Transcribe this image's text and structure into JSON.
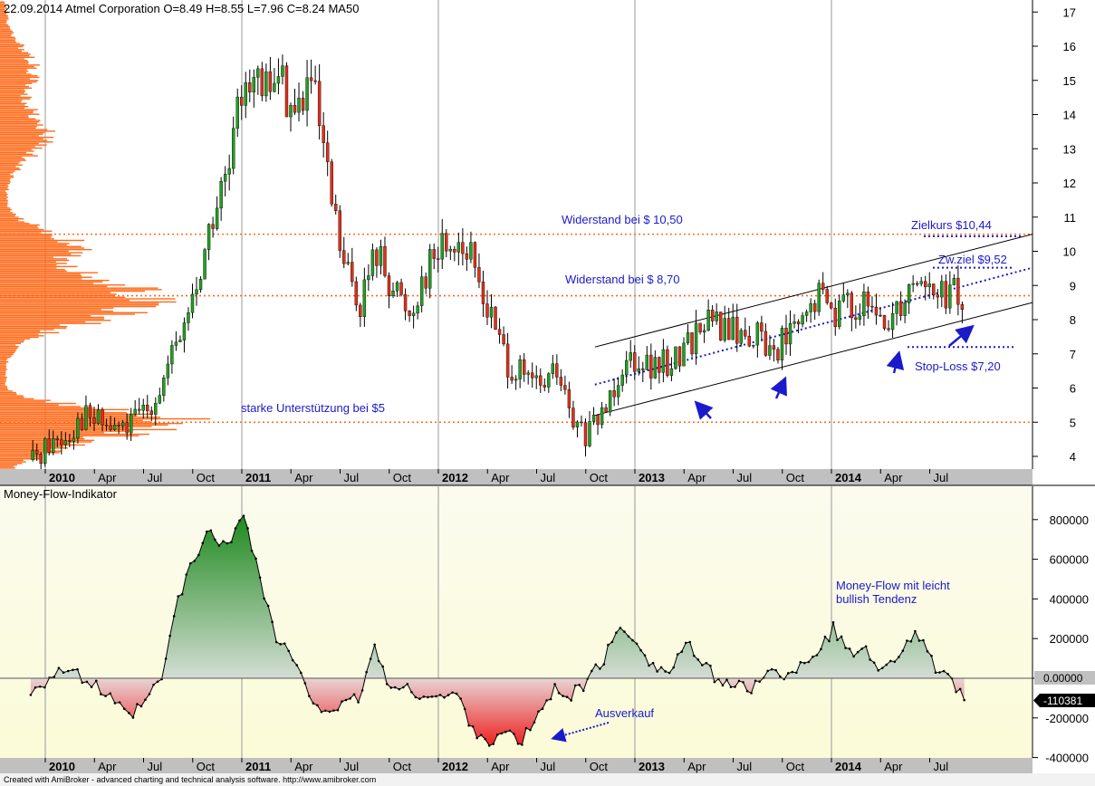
{
  "header": {
    "title": "22.09.2014 Atmel Corporation  O=8.49  H=8.55  L=7.96  C=8.24    MA50"
  },
  "colors": {
    "price_bg": "#ffffff",
    "indicator_bg_top": "#fbfbef",
    "indicator_bg_bottom": "#fbfbd8",
    "axis_band": "#c0c0c0",
    "candle_up": "#22a022",
    "candle_down": "#e0301a",
    "volume_profile": "#ff6a1a",
    "resistance_line": "#ff6a1a",
    "annotation_text": "#1a1acc",
    "mf_positive": "#2a8a2a",
    "mf_negative": "#e02020"
  },
  "x_axis": {
    "labels": [
      {
        "text": "2010",
        "bold": true
      },
      {
        "text": "Apr",
        "bold": false
      },
      {
        "text": "Jul",
        "bold": false
      },
      {
        "text": "Oct",
        "bold": false
      },
      {
        "text": "2011",
        "bold": true
      },
      {
        "text": "Apr",
        "bold": false
      },
      {
        "text": "Jul",
        "bold": false
      },
      {
        "text": "Oct",
        "bold": false
      },
      {
        "text": "2012",
        "bold": true
      },
      {
        "text": "Apr",
        "bold": false
      },
      {
        "text": "Jul",
        "bold": false
      },
      {
        "text": "Oct",
        "bold": false
      },
      {
        "text": "2013",
        "bold": true
      },
      {
        "text": "Apr",
        "bold": false
      },
      {
        "text": "Jul",
        "bold": false
      },
      {
        "text": "Oct",
        "bold": false
      },
      {
        "text": "2014",
        "bold": true
      },
      {
        "text": "Apr",
        "bold": false
      },
      {
        "text": "Jul",
        "bold": false
      }
    ]
  },
  "price_panel": {
    "y_ticks": [
      "4",
      "5",
      "6",
      "7",
      "8",
      "9",
      "10",
      "11",
      "12",
      "13",
      "14",
      "15",
      "16",
      "17"
    ],
    "annotations": {
      "resistance_1050": "Widerstand bei $ 10,50",
      "resistance_870": "Widerstand bei $ 8,70",
      "support_5": "starke Unterstützung bei $5",
      "target": "Zielkurs $10,44",
      "intermediate_target": "Zw.ziel $9,52",
      "stop_loss": "Stop-Loss $7,20"
    }
  },
  "indicator_panel": {
    "title": "Money-Flow-Indikator",
    "y_ticks": [
      "800000",
      "600000",
      "400000",
      "200000",
      "0",
      "-200000",
      "-400000"
    ],
    "zero_label": "0.00000",
    "last_value_label": "-110381",
    "annotations": {
      "trend": "Money-Flow mit leicht",
      "trend_line2": "bullish Tendenz",
      "selloff": "Ausverkauf"
    }
  },
  "footer": {
    "credit": "Created with AmiBroker - advanced charting and technical analysis software. http://www.amibroker.com"
  },
  "chart_data": [
    {
      "type": "candlestick",
      "title": "22.09.2014 Atmel Corporation  O=8.49  H=8.55  L=7.96  C=8.24    MA50",
      "ylim": [
        3.6,
        17.3
      ],
      "last_bar": {
        "open": 8.49,
        "high": 8.55,
        "low": 7.96,
        "close": 8.24
      },
      "x": [
        "2009-12",
        "2010-01",
        "2010-02",
        "2010-03",
        "2010-04",
        "2010-05",
        "2010-06",
        "2010-07",
        "2010-08",
        "2010-09",
        "2010-10",
        "2010-11",
        "2010-12",
        "2011-01",
        "2011-02",
        "2011-03",
        "2011-04",
        "2011-05",
        "2011-06",
        "2011-07",
        "2011-08",
        "2011-09",
        "2011-10",
        "2011-11",
        "2011-12",
        "2012-01",
        "2012-02",
        "2012-03",
        "2012-04",
        "2012-05",
        "2012-06",
        "2012-07",
        "2012-08",
        "2012-09",
        "2012-10",
        "2012-11",
        "2012-12",
        "2013-01",
        "2013-02",
        "2013-03",
        "2013-04",
        "2013-05",
        "2013-06",
        "2013-07",
        "2013-08",
        "2013-09",
        "2013-10",
        "2013-11",
        "2013-12",
        "2014-01",
        "2014-02",
        "2014-03",
        "2014-04",
        "2014-05",
        "2014-06",
        "2014-07",
        "2014-08",
        "2014-09"
      ],
      "close_approx": [
        3.9,
        4.4,
        4.6,
        5.2,
        5.0,
        4.8,
        4.9,
        5.5,
        6.2,
        7.5,
        9.0,
        11.0,
        12.3,
        15.5,
        14.5,
        15.2,
        14.0,
        15.0,
        12.0,
        9.5,
        8.5,
        10.0,
        9.0,
        8.2,
        9.5,
        10.2,
        10.4,
        9.5,
        8.0,
        6.8,
        6.2,
        6.0,
        6.5,
        4.8,
        4.6,
        5.5,
        6.8,
        7.0,
        6.5,
        6.8,
        7.3,
        8.0,
        7.8,
        7.6,
        7.6,
        7.1,
        7.5,
        7.8,
        8.7,
        8.3,
        8.5,
        8.2,
        7.8,
        8.6,
        9.4,
        8.7,
        8.8,
        8.24
      ],
      "volume_profile": "horizontal price-volume histogram on left edge, largest around 8-9 and 4.8-5.5",
      "horizontal_levels": [
        10.5,
        8.7,
        5.0
      ],
      "channel_upper": [
        {
          "x": "2012-11",
          "y": 7.2
        },
        {
          "x": "2014-10",
          "y": 10.5
        }
      ],
      "channel_lower": [
        {
          "x": "2012-11",
          "y": 5.2
        },
        {
          "x": "2014-10",
          "y": 8.5
        }
      ],
      "channel_mid_dotted": [
        {
          "x": "2012-11",
          "y": 6.1
        },
        {
          "x": "2014-10",
          "y": 9.52
        }
      ],
      "target_levels": [
        10.44,
        9.52,
        7.2
      ],
      "y_ticks": [
        4,
        5,
        6,
        7,
        8,
        9,
        10,
        11,
        12,
        13,
        14,
        15,
        16,
        17
      ]
    },
    {
      "type": "area",
      "title": "Money-Flow-Indikator",
      "ylim": [
        -400000,
        900000
      ],
      "y_ticks": [
        800000,
        600000,
        400000,
        200000,
        0,
        -200000,
        -400000
      ],
      "x": [
        "2009-12",
        "2010-02",
        "2010-04",
        "2010-06",
        "2010-07",
        "2010-08",
        "2010-09",
        "2010-10",
        "2010-11",
        "2010-12",
        "2011-01",
        "2011-02",
        "2011-03",
        "2011-04",
        "2011-05",
        "2011-06",
        "2011-07",
        "2011-08",
        "2011-09",
        "2011-10",
        "2011-11",
        "2011-12",
        "2012-01",
        "2012-02",
        "2012-03",
        "2012-04",
        "2012-05",
        "2012-06",
        "2012-07",
        "2012-08",
        "2012-09",
        "2012-10",
        "2012-11",
        "2012-12",
        "2013-01",
        "2013-02",
        "2013-03",
        "2013-04",
        "2013-05",
        "2013-06",
        "2013-07",
        "2013-08",
        "2013-09",
        "2013-10",
        "2013-11",
        "2013-12",
        "2014-01",
        "2014-02",
        "2014-03",
        "2014-04",
        "2014-05",
        "2014-06",
        "2014-07",
        "2014-08",
        "2014-09"
      ],
      "values": [
        -60000,
        50000,
        -40000,
        -200000,
        -120000,
        0,
        400000,
        600000,
        750000,
        650000,
        850000,
        500000,
        200000,
        100000,
        -100000,
        -150000,
        -150000,
        -100000,
        150000,
        -50000,
        -60000,
        -80000,
        -100000,
        -80000,
        -250000,
        -320000,
        -280000,
        -320000,
        -180000,
        -60000,
        -80000,
        -20000,
        100000,
        250000,
        200000,
        60000,
        30000,
        180000,
        60000,
        0,
        -40000,
        -60000,
        60000,
        -20000,
        80000,
        130000,
        250000,
        120000,
        160000,
        30000,
        130000,
        240000,
        80000,
        -10000,
        -110381
      ]
    }
  ]
}
